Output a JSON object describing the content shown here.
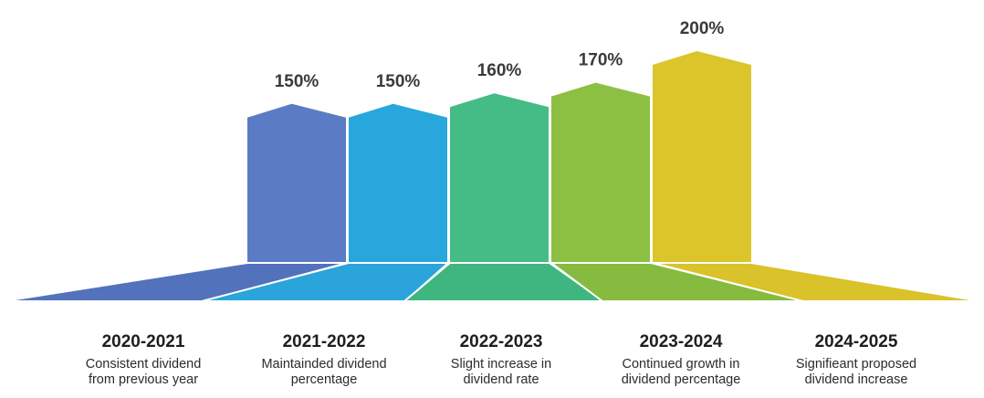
{
  "chart_data": {
    "type": "bar",
    "categories": [
      "2020-2021",
      "2021-2022",
      "2022-2023",
      "2023-2024",
      "2024-2025"
    ],
    "values": [
      150,
      150,
      160,
      170,
      200
    ],
    "value_labels": [
      "150%",
      "150%",
      "160%",
      "170%",
      "200%"
    ],
    "descriptions": [
      [
        "Consistent dividend",
        "from previous year"
      ],
      [
        "Maintainded dividend",
        "percentage"
      ],
      [
        "Slight increase in",
        "dividend rate"
      ],
      [
        "Continued growth in",
        "dividend percentage"
      ],
      [
        "Signifieant proposed",
        "dividend increase"
      ]
    ],
    "colors": [
      "#5b7cc4",
      "#27a7dc",
      "#45bb86",
      "#8cc043",
      "#dcc52b"
    ],
    "base_colors": [
      "#5272bb",
      "#2aa4db",
      "#3fb680",
      "#86bb3f",
      "#d9c22a"
    ],
    "ylim": [
      0,
      200
    ],
    "grid": false,
    "legend": "none",
    "xlabel": "",
    "ylabel": ""
  }
}
